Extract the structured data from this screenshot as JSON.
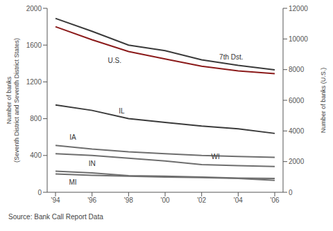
{
  "chart_data": {
    "type": "line",
    "ylabel": "Number of banks (Seventh District and Seventh District States)",
    "y2label": "Number of banks (U.S.)",
    "source": "Source: Bank Call Report Data",
    "categories": [
      "'94",
      "'96",
      "'98",
      "'00",
      "'02",
      "'04",
      "'06"
    ],
    "ylim": [
      0,
      2000
    ],
    "yticks": [
      0,
      400,
      800,
      1200,
      1600,
      2000
    ],
    "y2lim": [
      0,
      12000
    ],
    "y2ticks": [
      0,
      2000,
      4000,
      6000,
      8000,
      10000,
      12000
    ],
    "grid": false,
    "legend": "none",
    "series": [
      {
        "name": "7th Dst.",
        "color": "#3a3a3a",
        "values": [
          1890,
          1750,
          1600,
          1540,
          1440,
          1380,
          1330
        ]
      },
      {
        "name": "U.S.",
        "color": "#8b1a1a",
        "axis": "y2",
        "values": [
          10800,
          9950,
          9180,
          8700,
          8220,
          7920,
          7740
        ]
      },
      {
        "name": "IL",
        "color": "#3a3a3a",
        "values": [
          950,
          890,
          800,
          760,
          720,
          690,
          640
        ]
      },
      {
        "name": "IA",
        "color": "#6e6e6e",
        "values": [
          510,
          470,
          440,
          420,
          400,
          390,
          380
        ]
      },
      {
        "name": "WI",
        "color": "#6e6e6e",
        "values": [
          420,
          400,
          370,
          340,
          300,
          290,
          280
        ]
      },
      {
        "name": "IN",
        "color": "#6e6e6e",
        "values": [
          230,
          210,
          180,
          175,
          165,
          155,
          150
        ]
      },
      {
        "name": "MI",
        "color": "#6e6e6e",
        "values": [
          200,
          185,
          175,
          165,
          160,
          150,
          130
        ]
      }
    ]
  }
}
